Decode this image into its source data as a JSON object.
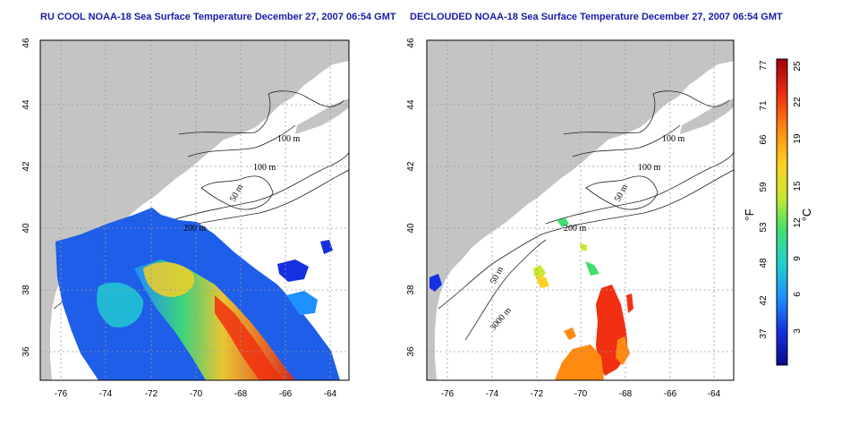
{
  "panels": [
    {
      "title": "RU COOL NOAA-18 Sea Surface Temperature December 27, 2007 06:54 GMT",
      "contour_labels": [
        "100 m",
        "100 m",
        "50 m",
        "200 m"
      ]
    },
    {
      "title": "DECLOUDED NOAA-18 Sea Surface Temperature December 27, 2007 06:54 GMT",
      "contour_labels": [
        "100 m",
        "100 m",
        "50 m",
        "200 m",
        "50 m",
        "3000 m"
      ]
    }
  ],
  "map_axes": {
    "lon_ticks": [
      "-76",
      "-74",
      "-72",
      "-70",
      "-68",
      "-66",
      "-64"
    ],
    "lat_ticks": [
      "36",
      "38",
      "40",
      "42",
      "44",
      "46"
    ],
    "lon_range": [
      -77,
      -63
    ],
    "lat_range": [
      35,
      46
    ]
  },
  "colorbar": {
    "fahrenheit_label": "°F",
    "celsius_label": "°C",
    "fahrenheit_ticks": [
      "37",
      "42",
      "48",
      "53",
      "59",
      "66",
      "71",
      "77"
    ],
    "celsius_ticks": [
      "3",
      "6",
      "9",
      "12",
      "15",
      "19",
      "22",
      "25"
    ],
    "colors": [
      "#0a0a8c",
      "#1530e0",
      "#1e90ff",
      "#20d0d0",
      "#40e070",
      "#c8e830",
      "#ffd020",
      "#ff8a10",
      "#f03010",
      "#a00010"
    ]
  }
}
